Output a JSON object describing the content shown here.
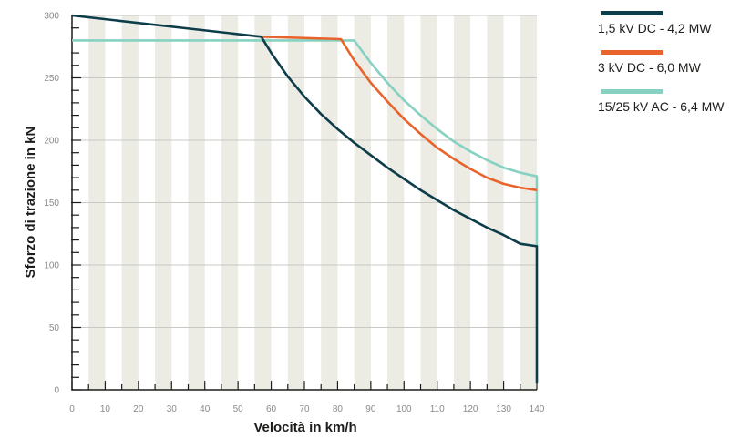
{
  "chart_data": {
    "type": "line",
    "xlabel": "Velocità in km/h",
    "ylabel": "Sforzo di trazione in kN",
    "xlim": [
      0,
      140
    ],
    "ylim": [
      0,
      300
    ],
    "xticks": [
      0,
      10,
      20,
      30,
      40,
      50,
      60,
      70,
      80,
      90,
      100,
      110,
      120,
      130,
      140
    ],
    "yticks": [
      0,
      50,
      100,
      150,
      200,
      250,
      300
    ],
    "grid": "horizontal lines every 50 kN; alternating vertical bands every 5 km/h",
    "legend_position": "right",
    "colors": {
      "band": "#ecebe4",
      "grid": "#c9c9c4",
      "axis": "#1d1d1b",
      "tick_label": "#8a8a8a"
    },
    "series": [
      {
        "name": "1,5 kV DC - 4,2 MW",
        "color": "#0e3d4a",
        "x": [
          0,
          57,
          60,
          65,
          70,
          75,
          80,
          85,
          90,
          95,
          100,
          105,
          110,
          115,
          120,
          125,
          130,
          135,
          140,
          140
        ],
        "y": [
          300,
          283,
          270,
          251,
          235,
          221,
          209,
          198,
          188,
          178,
          169,
          160,
          152,
          144,
          137,
          130,
          124,
          117,
          115,
          5
        ]
      },
      {
        "name": "3 kV DC - 6,0 MW",
        "color": "#e8642c",
        "x": [
          57,
          81,
          85,
          90,
          95,
          100,
          105,
          110,
          115,
          120,
          125,
          130,
          135,
          140
        ],
        "y": [
          283,
          281,
          264,
          246,
          231,
          217,
          205,
          194,
          185,
          177,
          170,
          165,
          162,
          160
        ]
      },
      {
        "name": "15/25 kV AC - 6,4 MW",
        "color": "#86d1c1",
        "x": [
          0,
          85,
          90,
          95,
          100,
          105,
          110,
          115,
          120,
          125,
          130,
          135,
          140,
          140
        ],
        "y": [
          280,
          280,
          262,
          246,
          232,
          220,
          209,
          199,
          191,
          184,
          178,
          174,
          171,
          115
        ]
      }
    ]
  }
}
